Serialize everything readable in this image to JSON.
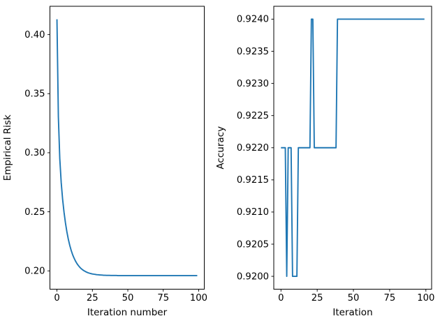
{
  "figure": {
    "background": "#ffffff",
    "axis_color": "#000000",
    "tick_label_color": "#000000",
    "line_color": "#1f77b4"
  },
  "chart_data": [
    {
      "type": "line",
      "title": "",
      "xlabel": "Iteration number",
      "ylabel": "Empirical Risk",
      "xlim": [
        -4.95,
        103.95
      ],
      "ylim": [
        0.1845,
        0.424
      ],
      "xticks": [
        0,
        25,
        50,
        75,
        100
      ],
      "xtick_labels": [
        "0",
        "25",
        "50",
        "75",
        "100"
      ],
      "yticks": [
        0.2,
        0.25,
        0.3,
        0.35,
        0.4
      ],
      "ytick_labels": [
        "0.20",
        "0.25",
        "0.30",
        "0.35",
        "0.40"
      ],
      "grid": false,
      "legend": null,
      "series": [
        {
          "name": "empirical-risk",
          "color": "#1f77b4",
          "x": [
            0,
            1,
            2,
            3,
            4,
            5,
            6,
            7,
            8,
            9,
            10,
            11,
            12,
            13,
            14,
            15,
            16,
            17,
            18,
            19,
            20,
            21,
            22,
            23,
            24,
            25,
            26,
            27,
            28,
            29,
            30,
            31,
            32,
            33,
            34,
            35,
            36,
            37,
            38,
            39,
            40,
            41,
            42,
            43,
            44,
            45,
            46,
            47,
            48,
            49,
            50,
            51,
            52,
            53,
            54,
            55,
            56,
            57,
            58,
            59,
            60,
            61,
            62,
            63,
            64,
            65,
            66,
            67,
            68,
            69,
            70,
            71,
            72,
            73,
            74,
            75,
            76,
            77,
            78,
            79,
            80,
            81,
            82,
            83,
            84,
            85,
            86,
            87,
            88,
            89,
            90,
            91,
            92,
            93,
            94,
            95,
            96,
            97,
            98,
            99
          ],
          "y": [
            0.413,
            0.3304,
            0.295,
            0.2748,
            0.2606,
            0.2496,
            0.2406,
            0.2331,
            0.2269,
            0.2218,
            0.2175,
            0.2139,
            0.211,
            0.2085,
            0.2064,
            0.2047,
            0.2032,
            0.202,
            0.201,
            0.2002,
            0.1995,
            0.1989,
            0.1984,
            0.198,
            0.1977,
            0.1974,
            0.1972,
            0.197,
            0.1968,
            0.1967,
            0.1966,
            0.1965,
            0.1964,
            0.1963,
            0.1963,
            0.1962,
            0.1962,
            0.1962,
            0.1961,
            0.1961,
            0.1961,
            0.1961,
            0.1961,
            0.196,
            0.196,
            0.196,
            0.196,
            0.196,
            0.196,
            0.196,
            0.196,
            0.196,
            0.196,
            0.196,
            0.196,
            0.196,
            0.196,
            0.196,
            0.196,
            0.196,
            0.196,
            0.196,
            0.196,
            0.196,
            0.196,
            0.196,
            0.196,
            0.196,
            0.196,
            0.196,
            0.196,
            0.196,
            0.196,
            0.196,
            0.196,
            0.196,
            0.196,
            0.196,
            0.196,
            0.196,
            0.196,
            0.196,
            0.196,
            0.196,
            0.196,
            0.196,
            0.196,
            0.196,
            0.196,
            0.196,
            0.196,
            0.196,
            0.196,
            0.196,
            0.196,
            0.196,
            0.196,
            0.196,
            0.196,
            0.196
          ]
        }
      ]
    },
    {
      "type": "line",
      "title": "",
      "xlabel": "Iteration",
      "ylabel": "Accuracy",
      "xlim": [
        -4.95,
        103.95
      ],
      "ylim": [
        0.9198,
        0.9242
      ],
      "xticks": [
        0,
        25,
        50,
        75,
        100
      ],
      "xtick_labels": [
        "0",
        "25",
        "50",
        "75",
        "100"
      ],
      "yticks": [
        0.92,
        0.9205,
        0.921,
        0.9215,
        0.922,
        0.9225,
        0.923,
        0.9235,
        0.924
      ],
      "ytick_labels": [
        "0.9200",
        "0.9205",
        "0.9210",
        "0.9215",
        "0.9220",
        "0.9225",
        "0.9230",
        "0.9235",
        "0.9240"
      ],
      "grid": false,
      "legend": null,
      "series": [
        {
          "name": "accuracy",
          "color": "#1f77b4",
          "x": [
            0,
            1,
            2,
            3,
            4,
            5,
            6,
            7,
            8,
            9,
            10,
            11,
            12,
            13,
            14,
            15,
            16,
            17,
            18,
            19,
            20,
            21,
            22,
            23,
            24,
            25,
            26,
            27,
            28,
            29,
            30,
            31,
            32,
            33,
            34,
            35,
            36,
            37,
            38,
            39,
            40,
            41,
            42,
            43,
            44,
            45,
            46,
            47,
            48,
            49,
            50,
            51,
            52,
            53,
            54,
            55,
            56,
            57,
            58,
            59,
            60,
            61,
            62,
            63,
            64,
            65,
            66,
            67,
            68,
            69,
            70,
            71,
            72,
            73,
            74,
            75,
            76,
            77,
            78,
            79,
            80,
            81,
            82,
            83,
            84,
            85,
            86,
            87,
            88,
            89,
            90,
            91,
            92,
            93,
            94,
            95,
            96,
            97,
            98,
            99
          ],
          "y": [
            0.922,
            0.922,
            0.922,
            0.922,
            0.92,
            0.922,
            0.922,
            0.922,
            0.92,
            0.92,
            0.92,
            0.92,
            0.922,
            0.922,
            0.922,
            0.922,
            0.922,
            0.922,
            0.922,
            0.922,
            0.922,
            0.924,
            0.924,
            0.922,
            0.922,
            0.922,
            0.922,
            0.922,
            0.922,
            0.922,
            0.922,
            0.922,
            0.922,
            0.922,
            0.922,
            0.922,
            0.922,
            0.922,
            0.922,
            0.924,
            0.924,
            0.924,
            0.924,
            0.924,
            0.924,
            0.924,
            0.924,
            0.924,
            0.924,
            0.924,
            0.924,
            0.924,
            0.924,
            0.924,
            0.924,
            0.924,
            0.924,
            0.924,
            0.924,
            0.924,
            0.924,
            0.924,
            0.924,
            0.924,
            0.924,
            0.924,
            0.924,
            0.924,
            0.924,
            0.924,
            0.924,
            0.924,
            0.924,
            0.924,
            0.924,
            0.924,
            0.924,
            0.924,
            0.924,
            0.924,
            0.924,
            0.924,
            0.924,
            0.924,
            0.924,
            0.924,
            0.924,
            0.924,
            0.924,
            0.924,
            0.924,
            0.924,
            0.924,
            0.924,
            0.924,
            0.924,
            0.924,
            0.924,
            0.924,
            0.924
          ]
        }
      ]
    }
  ]
}
